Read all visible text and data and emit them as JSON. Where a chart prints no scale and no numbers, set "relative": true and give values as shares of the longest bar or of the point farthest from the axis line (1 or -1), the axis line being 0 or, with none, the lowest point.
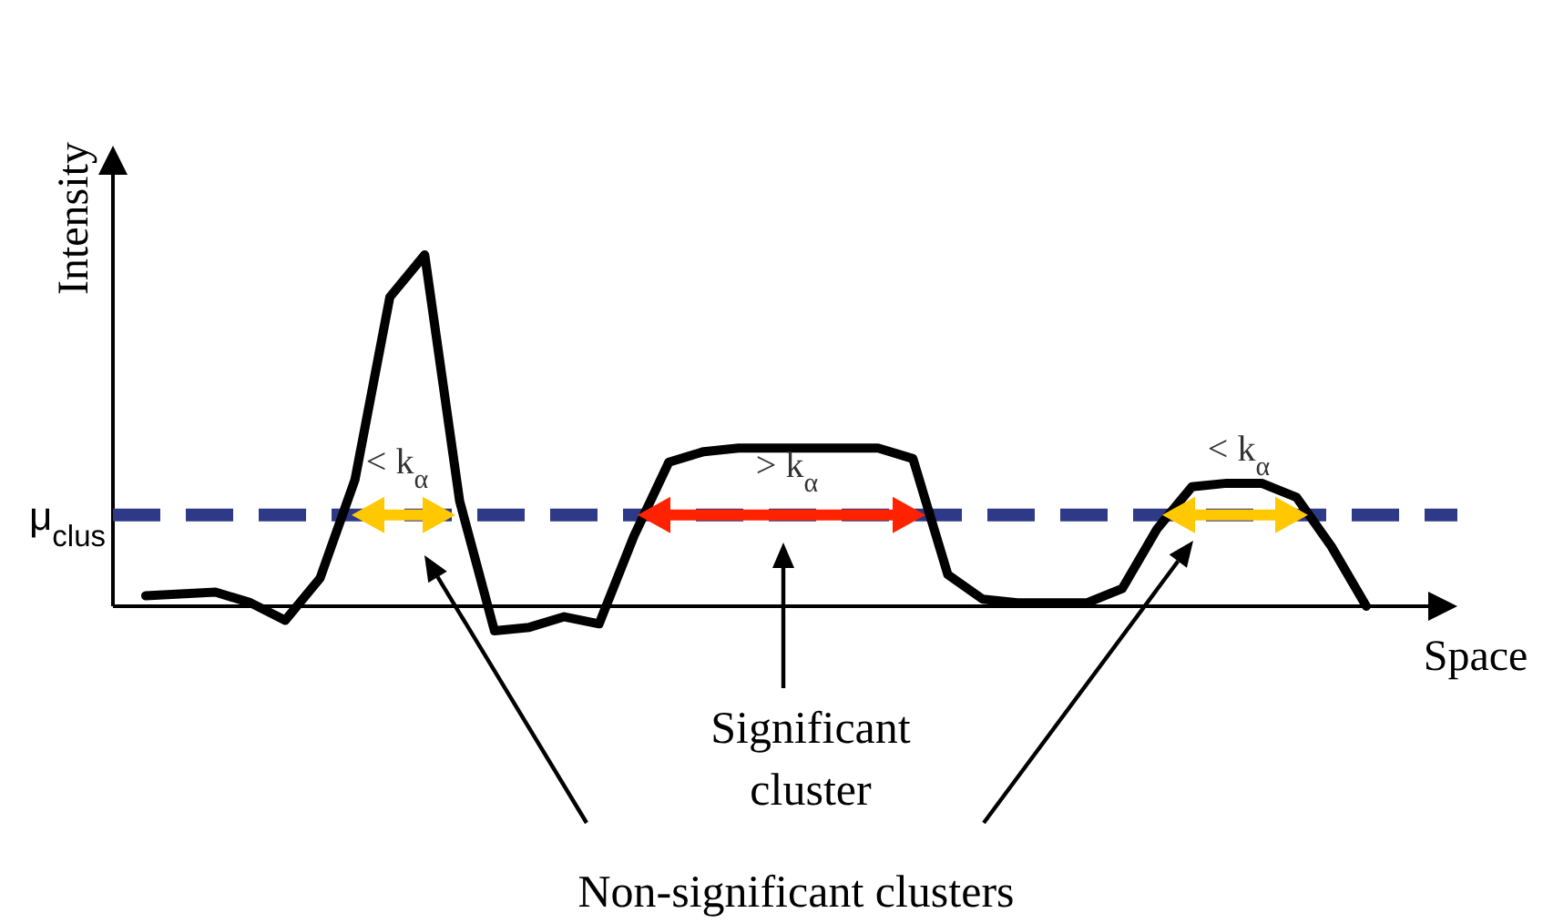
{
  "chart_data": {
    "type": "line",
    "relative": true,
    "xlabel": "Space",
    "ylabel": "Intensity",
    "categories": [
      null,
      null,
      null,
      null,
      null,
      null,
      null,
      null,
      null,
      null,
      null,
      null,
      null,
      null,
      null,
      null,
      null,
      null,
      null,
      null,
      null,
      null,
      null,
      null,
      null,
      null,
      null,
      null,
      null,
      null,
      null,
      null,
      null,
      null,
      null,
      null
    ],
    "series": [
      {
        "color": "#000000",
        "values": [
          0.03,
          0.035,
          0.04,
          0.01,
          -0.04,
          0.08,
          0.36,
          0.88,
          1,
          0.3,
          -0.07,
          -0.06,
          -0.03,
          -0.05,
          0.2,
          0.41,
          0.44,
          0.45,
          0.45,
          0.45,
          0.45,
          0.45,
          0.42,
          0.09,
          0.02,
          0.01,
          0.01,
          0.01,
          0.05,
          0.22,
          0.34,
          0.35,
          0.35,
          0.31,
          0.17,
          0
        ]
      }
    ],
    "ref_lines": [
      {
        "axis": "y",
        "value": 0.26,
        "label": "μ$_{clus}$",
        "color": "#2e3a87",
        "line_style": "dashed"
      }
    ],
    "annotations": [
      "< k$_{α}$",
      "> k$_{α}$",
      "< k$_{α}$",
      "Significant cluster",
      "Non-significant clusters"
    ],
    "marker": "none",
    "line_style": "solid"
  }
}
